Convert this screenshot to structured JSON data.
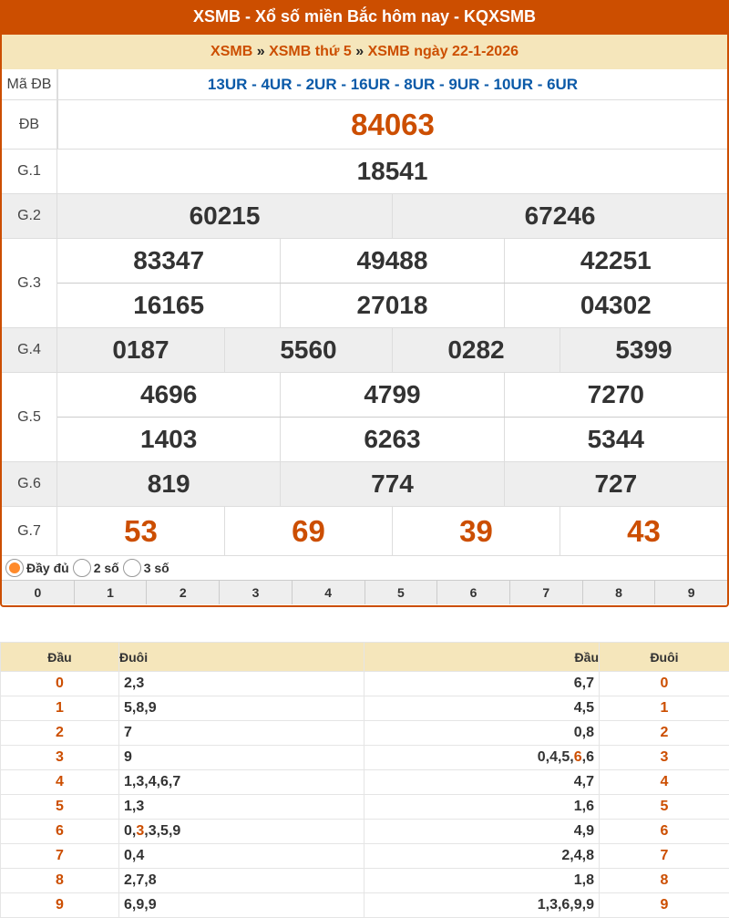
{
  "header": {
    "title": "XSMB - Xổ số miền Bắc hôm nay - KQXSMB"
  },
  "breadcrumb": {
    "items": [
      "XSMB",
      "XSMB thứ 5",
      "XSMB ngày 22-1-2026"
    ],
    "sep": "»"
  },
  "colors": {
    "brand": "#cc4e00",
    "highlight_bg": "#f5e6bb",
    "code": "#0b5aa8"
  },
  "results": {
    "ma_db": {
      "label": "Mã ĐB",
      "value": "13UR - 4UR - 2UR - 16UR - 8UR - 9UR - 10UR - 6UR"
    },
    "db": {
      "label": "ĐB",
      "value": "84063"
    },
    "g1": {
      "label": "G.1",
      "values": [
        "18541"
      ]
    },
    "g2": {
      "label": "G.2",
      "values": [
        "60215",
        "67246"
      ]
    },
    "g3": {
      "label": "G.3",
      "values": [
        "83347",
        "49488",
        "42251",
        "16165",
        "27018",
        "04302"
      ]
    },
    "g4": {
      "label": "G.4",
      "values": [
        "0187",
        "5560",
        "0282",
        "5399"
      ]
    },
    "g5": {
      "label": "G.5",
      "values": [
        "4696",
        "4799",
        "7270",
        "1403",
        "6263",
        "5344"
      ]
    },
    "g6": {
      "label": "G.6",
      "values": [
        "819",
        "774",
        "727"
      ]
    },
    "g7": {
      "label": "G.7",
      "values": [
        "53",
        "69",
        "39",
        "43"
      ]
    }
  },
  "display_options": [
    {
      "label": "Đầy đủ",
      "selected": true
    },
    {
      "label": "2 số",
      "selected": false
    },
    {
      "label": "3 số",
      "selected": false
    }
  ],
  "digit_filter": [
    "0",
    "1",
    "2",
    "3",
    "4",
    "5",
    "6",
    "7",
    "8",
    "9"
  ],
  "loto": {
    "headers": [
      "Đầu",
      "Đuôi",
      "Đầu",
      "Đuôi"
    ],
    "rows": [
      {
        "dau": "0",
        "duoi": [
          [
            "2,3",
            false
          ]
        ],
        "dau2": [
          [
            "6,7",
            false
          ]
        ],
        "duoi2": "0"
      },
      {
        "dau": "1",
        "duoi": [
          [
            "5,8,9",
            false
          ]
        ],
        "dau2": [
          [
            "4,5",
            false
          ]
        ],
        "duoi2": "1"
      },
      {
        "dau": "2",
        "duoi": [
          [
            "7",
            false
          ]
        ],
        "dau2": [
          [
            "0,8",
            false
          ]
        ],
        "duoi2": "2"
      },
      {
        "dau": "3",
        "duoi": [
          [
            "9",
            false
          ]
        ],
        "dau2": [
          [
            "0,4,5,",
            false
          ],
          [
            "6",
            true
          ],
          [
            ",6",
            false
          ]
        ],
        "duoi2": "3"
      },
      {
        "dau": "4",
        "duoi": [
          [
            "1,3,4,6,7",
            false
          ]
        ],
        "dau2": [
          [
            "4,7",
            false
          ]
        ],
        "duoi2": "4"
      },
      {
        "dau": "5",
        "duoi": [
          [
            "1,3",
            false
          ]
        ],
        "dau2": [
          [
            "1,6",
            false
          ]
        ],
        "duoi2": "5"
      },
      {
        "dau": "6",
        "duoi": [
          [
            "0,",
            false
          ],
          [
            "3",
            true
          ],
          [
            ",3,5,9",
            false
          ]
        ],
        "dau2": [
          [
            "4,9",
            false
          ]
        ],
        "duoi2": "6"
      },
      {
        "dau": "7",
        "duoi": [
          [
            "0,4",
            false
          ]
        ],
        "dau2": [
          [
            "2,4,8",
            false
          ]
        ],
        "duoi2": "7"
      },
      {
        "dau": "8",
        "duoi": [
          [
            "2,7,8",
            false
          ]
        ],
        "dau2": [
          [
            "1,8",
            false
          ]
        ],
        "duoi2": "8"
      },
      {
        "dau": "9",
        "duoi": [
          [
            "6,9,9",
            false
          ]
        ],
        "dau2": [
          [
            "1,3,6,9,9",
            false
          ]
        ],
        "duoi2": "9"
      }
    ]
  }
}
